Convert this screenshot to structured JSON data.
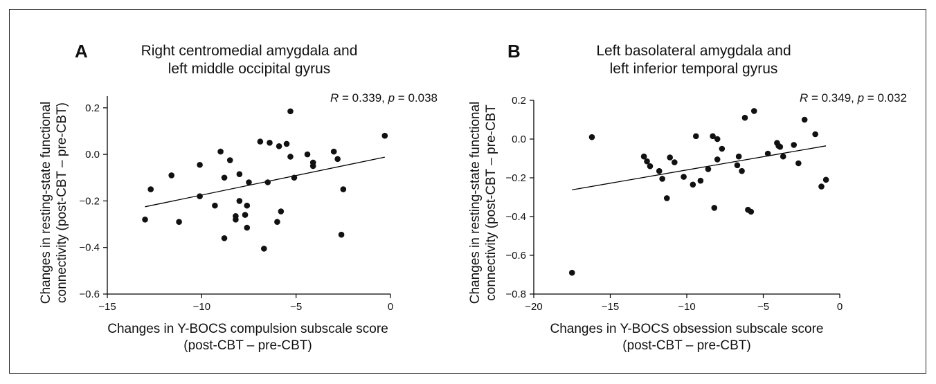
{
  "chart_data": [
    {
      "type": "scatter",
      "panel_letter": "A",
      "title": [
        "Right centromedial amygdala and",
        "left middle occipital gyrus"
      ],
      "annotation": {
        "r_label": "R",
        "r_value": " = 0.339, ",
        "p_label": "p",
        "p_value": " = 0.038"
      },
      "ylabel": [
        "Changes in resting-state functional",
        "connectivity (post-CBT – pre-CBT)"
      ],
      "xlabel": [
        "Changes in Y-BOCS compulsion subscale score",
        "(post-CBT – pre-CBT)"
      ],
      "xlim": [
        -15,
        0
      ],
      "ylim": [
        -0.6,
        0.25
      ],
      "xticks": [
        -15,
        -10,
        -5,
        0
      ],
      "xtick_labels": [
        "−15",
        "−10",
        "−5",
        "0"
      ],
      "yticks": [
        -0.6,
        -0.4,
        -0.2,
        0.0,
        0.2
      ],
      "ytick_labels": [
        "−0.6",
        "−0.4",
        "−0.2",
        "0.0",
        "0.2"
      ],
      "fit_line": [
        [
          -13,
          -0.225
        ],
        [
          -0.3,
          -0.012
        ]
      ],
      "points": [
        [
          -13.0,
          -0.28
        ],
        [
          -12.7,
          -0.15
        ],
        [
          -11.6,
          -0.09
        ],
        [
          -11.2,
          -0.29
        ],
        [
          -10.1,
          -0.045
        ],
        [
          -10.1,
          -0.18
        ],
        [
          -9.3,
          -0.22
        ],
        [
          -9.0,
          0.012
        ],
        [
          -8.8,
          -0.36
        ],
        [
          -8.8,
          -0.1
        ],
        [
          -8.5,
          -0.025
        ],
        [
          -8.2,
          -0.265
        ],
        [
          -8.2,
          -0.28
        ],
        [
          -8.0,
          -0.085
        ],
        [
          -8.0,
          -0.2
        ],
        [
          -7.7,
          -0.26
        ],
        [
          -7.6,
          -0.22
        ],
        [
          -7.6,
          -0.315
        ],
        [
          -7.5,
          -0.12
        ],
        [
          -6.9,
          0.055
        ],
        [
          -6.7,
          -0.405
        ],
        [
          -6.5,
          -0.12
        ],
        [
          -6.4,
          0.05
        ],
        [
          -6.0,
          -0.29
        ],
        [
          -5.9,
          0.035
        ],
        [
          -5.8,
          -0.245
        ],
        [
          -5.5,
          0.045
        ],
        [
          -5.3,
          0.185
        ],
        [
          -5.3,
          -0.01
        ],
        [
          -5.1,
          -0.1
        ],
        [
          -4.4,
          0.0
        ],
        [
          -4.1,
          -0.035
        ],
        [
          -4.1,
          -0.05
        ],
        [
          -3.0,
          0.012
        ],
        [
          -2.8,
          -0.02
        ],
        [
          -2.6,
          -0.345
        ],
        [
          -2.5,
          -0.15
        ],
        [
          -0.3,
          0.08
        ]
      ]
    },
    {
      "type": "scatter",
      "panel_letter": "B",
      "title": [
        "Left basolateral amygdala and",
        "left inferior temporal gyrus"
      ],
      "annotation": {
        "r_label": "R",
        "r_value": " = 0.349, ",
        "p_label": "p",
        "p_value": " = 0.032"
      },
      "ylabel": [
        "Changes in resting-state functional",
        "connectivity (post-CBT – pre-CBT"
      ],
      "xlabel": [
        "Changes in Y-BOCS obsession subscale score",
        "(post-CBT – pre-CBT)"
      ],
      "xlim": [
        -20,
        0
      ],
      "ylim": [
        -0.8,
        0.2
      ],
      "xticks": [
        -20,
        -15,
        -10,
        -5,
        0
      ],
      "xtick_labels": [
        "−20",
        "−15",
        "−10",
        "−5",
        "0"
      ],
      "yticks": [
        -0.8,
        -0.6,
        -0.4,
        -0.2,
        0.0,
        0.2
      ],
      "ytick_labels": [
        "−0.8",
        "−0.6",
        "−0.4",
        "−0.2",
        "0.0",
        "0.2"
      ],
      "fit_line": [
        [
          -17.5,
          -0.262
        ],
        [
          -0.9,
          -0.035
        ]
      ],
      "points": [
        [
          -17.5,
          -0.69
        ],
        [
          -16.2,
          0.01
        ],
        [
          -12.8,
          -0.09
        ],
        [
          -12.6,
          -0.115
        ],
        [
          -12.4,
          -0.14
        ],
        [
          -11.8,
          -0.165
        ],
        [
          -11.6,
          -0.205
        ],
        [
          -11.3,
          -0.305
        ],
        [
          -11.1,
          -0.095
        ],
        [
          -10.8,
          -0.12
        ],
        [
          -10.2,
          -0.195
        ],
        [
          -9.6,
          -0.235
        ],
        [
          -9.4,
          0.015
        ],
        [
          -9.1,
          -0.215
        ],
        [
          -8.6,
          -0.155
        ],
        [
          -8.3,
          0.015
        ],
        [
          -8.2,
          -0.355
        ],
        [
          -8.0,
          0.0
        ],
        [
          -8.0,
          -0.105
        ],
        [
          -7.7,
          -0.05
        ],
        [
          -6.7,
          -0.135
        ],
        [
          -6.6,
          -0.09
        ],
        [
          -6.4,
          -0.165
        ],
        [
          -6.2,
          0.11
        ],
        [
          -6.0,
          -0.365
        ],
        [
          -5.8,
          -0.375
        ],
        [
          -5.6,
          0.145
        ],
        [
          -4.7,
          -0.075
        ],
        [
          -4.1,
          -0.02
        ],
        [
          -4.0,
          -0.035
        ],
        [
          -3.9,
          -0.04
        ],
        [
          -3.7,
          -0.09
        ],
        [
          -3.0,
          -0.03
        ],
        [
          -2.7,
          -0.125
        ],
        [
          -2.3,
          0.1
        ],
        [
          -1.6,
          0.025
        ],
        [
          -1.2,
          -0.245
        ],
        [
          -0.9,
          -0.21
        ]
      ]
    }
  ]
}
